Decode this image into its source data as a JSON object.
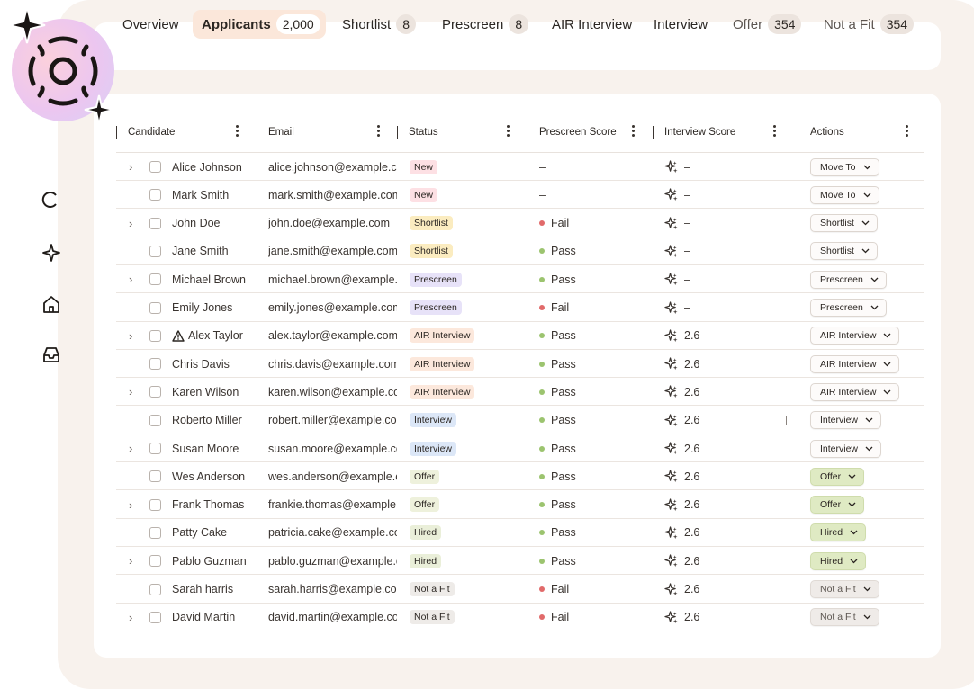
{
  "tabs": [
    {
      "label": "Overview",
      "count": null,
      "active": false,
      "muted": false
    },
    {
      "label": "Applicants",
      "count": "2,000",
      "active": true,
      "muted": false
    },
    {
      "label": "Shortlist",
      "count": "8",
      "active": false,
      "muted": false
    },
    {
      "label": "Prescreen",
      "count": "8",
      "active": false,
      "muted": false
    },
    {
      "label": "AIR Interview",
      "count": null,
      "active": false,
      "muted": false
    },
    {
      "label": "Interview",
      "count": null,
      "active": false,
      "muted": false
    },
    {
      "label": "Offer",
      "count": "354",
      "active": false,
      "muted": true
    },
    {
      "label": "Not a Fit",
      "count": "354",
      "active": false,
      "muted": true
    }
  ],
  "columns": [
    "Candidate",
    "Email",
    "Status",
    "Prescreen Score",
    "Interview Score",
    "Actions"
  ],
  "rows": [
    {
      "expandable": true,
      "warning": false,
      "name": "Alice Johnson",
      "email": "alice.johnson@example.com",
      "status": "New",
      "status_kind": "new",
      "prescreen": "–",
      "prescreen_kind": "",
      "interview": "–",
      "action": "Move To",
      "action_kind": "default"
    },
    {
      "expandable": false,
      "warning": false,
      "name": "Mark Smith",
      "email": "mark.smith@example.com",
      "status": "New",
      "status_kind": "new",
      "prescreen": "–",
      "prescreen_kind": "",
      "interview": "–",
      "action": "Move To",
      "action_kind": "default"
    },
    {
      "expandable": true,
      "warning": false,
      "name": "John Doe",
      "email": "john.doe@example.com",
      "status": "Shortlist",
      "status_kind": "shortlist",
      "prescreen": "Fail",
      "prescreen_kind": "fail",
      "interview": "–",
      "action": "Shortlist",
      "action_kind": "default"
    },
    {
      "expandable": false,
      "warning": false,
      "name": "Jane Smith",
      "email": "jane.smith@example.com",
      "status": "Shortlist",
      "status_kind": "shortlist",
      "prescreen": "Pass",
      "prescreen_kind": "pass",
      "interview": "–",
      "action": "Shortlist",
      "action_kind": "default"
    },
    {
      "expandable": true,
      "warning": false,
      "name": "Michael Brown",
      "email": "michael.brown@example.com",
      "status": "Prescreen",
      "status_kind": "prescreen",
      "prescreen": "Pass",
      "prescreen_kind": "pass",
      "interview": "–",
      "action": "Prescreen",
      "action_kind": "default"
    },
    {
      "expandable": false,
      "warning": false,
      "name": "Emily Jones",
      "email": "emily.jones@example.com",
      "status": "Prescreen",
      "status_kind": "prescreen",
      "prescreen": "Fail",
      "prescreen_kind": "fail",
      "interview": "–",
      "action": "Prescreen",
      "action_kind": "default"
    },
    {
      "expandable": true,
      "warning": true,
      "name": "Alex Taylor",
      "email": "alex.taylor@example.com",
      "status": "AIR Interview",
      "status_kind": "air",
      "prescreen": "Pass",
      "prescreen_kind": "pass",
      "interview": "2.6",
      "action": "AIR Interview",
      "action_kind": "default"
    },
    {
      "expandable": false,
      "warning": false,
      "name": "Chris Davis",
      "email": "chris.davis@example.com",
      "status": "AIR Interview",
      "status_kind": "air",
      "prescreen": "Pass",
      "prescreen_kind": "pass",
      "interview": "2.6",
      "action": "AIR Interview",
      "action_kind": "default"
    },
    {
      "expandable": true,
      "warning": false,
      "name": "Karen Wilson",
      "email": "karen.wilson@example.com",
      "status": "AIR Interview",
      "status_kind": "air",
      "prescreen": "Pass",
      "prescreen_kind": "pass",
      "interview": "2.6",
      "action": "AIR Interview",
      "action_kind": "default"
    },
    {
      "expandable": false,
      "warning": false,
      "name": "Roberto Miller",
      "email": "robert.miller@example.com",
      "status": "Interview",
      "status_kind": "interview",
      "prescreen": "Pass",
      "prescreen_kind": "pass",
      "interview": "2.6",
      "action": "Interview",
      "action_kind": "default"
    },
    {
      "expandable": true,
      "warning": false,
      "name": "Susan Moore",
      "email": "susan.moore@example.com",
      "status": "Interview",
      "status_kind": "interview",
      "prescreen": "Pass",
      "prescreen_kind": "pass",
      "interview": "2.6",
      "action": "Interview",
      "action_kind": "default"
    },
    {
      "expandable": false,
      "warning": false,
      "name": "Wes Anderson",
      "email": "wes.anderson@example.com",
      "status": "Offer",
      "status_kind": "offer",
      "prescreen": "Pass",
      "prescreen_kind": "pass",
      "interview": "2.6",
      "action": "Offer",
      "action_kind": "green"
    },
    {
      "expandable": true,
      "warning": false,
      "name": "Frank Thomas",
      "email": "frankie.thomas@example.com",
      "status": "Offer",
      "status_kind": "offer",
      "prescreen": "Pass",
      "prescreen_kind": "pass",
      "interview": "2.6",
      "action": "Offer",
      "action_kind": "green"
    },
    {
      "expandable": false,
      "warning": false,
      "name": "Patty Cake",
      "email": "patricia.cake@example.com",
      "status": "Hired",
      "status_kind": "hired",
      "prescreen": "Pass",
      "prescreen_kind": "pass",
      "interview": "2.6",
      "action": "Hired",
      "action_kind": "green"
    },
    {
      "expandable": true,
      "warning": false,
      "name": "Pablo Guzman",
      "email": "pablo.guzman@example.com",
      "status": "Hired",
      "status_kind": "hired",
      "prescreen": "Pass",
      "prescreen_kind": "pass",
      "interview": "2.6",
      "action": "Hired",
      "action_kind": "green"
    },
    {
      "expandable": false,
      "warning": false,
      "name": "Sarah harris",
      "email": "sarah.harris@example.com",
      "status": "Not a Fit",
      "status_kind": "notfit",
      "prescreen": "Fail",
      "prescreen_kind": "fail",
      "interview": "2.6",
      "action": "Not a Fit",
      "action_kind": "grey"
    },
    {
      "expandable": true,
      "warning": false,
      "name": "David Martin",
      "email": "david.martin@example.com",
      "status": "Not a Fit",
      "status_kind": "notfit",
      "prescreen": "Fail",
      "prescreen_kind": "fail",
      "interview": "2.6",
      "action": "Not a Fit",
      "action_kind": "grey"
    }
  ],
  "colors": {
    "active_tab": "#fbe7da",
    "pass": "#9cc46f",
    "fail": "#e16a6a",
    "frame": "#f8f2ed"
  },
  "icons": {
    "logo": "sun-sparkle-logo",
    "sidebar": [
      "circle-icon",
      "sparkle-icon",
      "home-icon",
      "inbox-icon"
    ]
  }
}
